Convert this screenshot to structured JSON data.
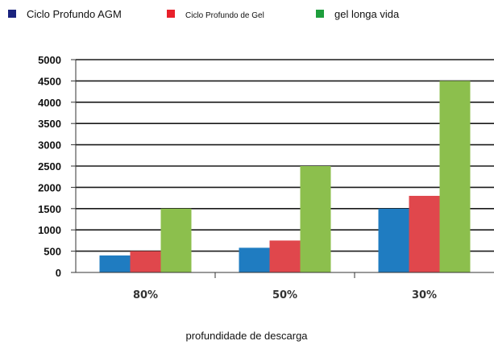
{
  "chart_data": {
    "type": "bar",
    "title": "",
    "xlabel": "profundidade de descarga",
    "ylabel": "",
    "categories": [
      "80%",
      "50%",
      "30%"
    ],
    "ylim": [
      0,
      5000
    ],
    "yticks": [
      0,
      500,
      1000,
      1500,
      2000,
      2500,
      3000,
      3500,
      4000,
      4500,
      5000
    ],
    "grid": true,
    "legend_position": "top-left",
    "series": [
      {
        "name": "Ciclo Profundo AGM",
        "values": [
          400,
          580,
          1500
        ],
        "color": "#1f7cc1",
        "legend_marker": "#1a237e"
      },
      {
        "name": "Ciclo Profundo de Gel",
        "values": [
          500,
          750,
          1800
        ],
        "color": "#e0474c",
        "legend_marker": "#e8202a"
      },
      {
        "name": "gel longa vida",
        "values": [
          1500,
          2500,
          4500
        ],
        "color": "#8cbf4d",
        "legend_marker": "#1e9e3c"
      }
    ]
  }
}
